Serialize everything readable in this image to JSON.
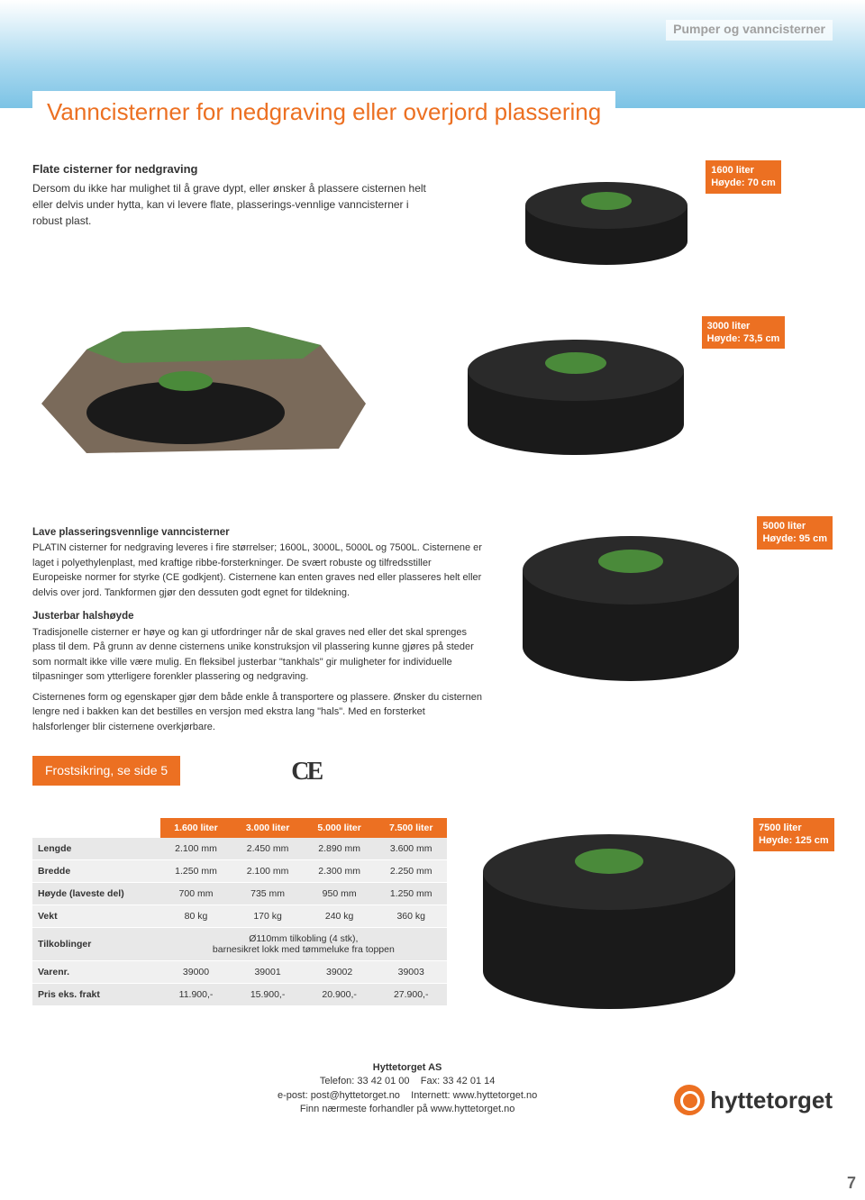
{
  "category": "Pumper og vanncisterner",
  "title": "Vanncisterner for nedgraving eller overjord plassering",
  "intro": {
    "heading": "Flate cisterner for nedgraving",
    "body": "Dersom du ikke har mulighet til å grave dypt, eller ønsker å plassere cisternen helt eller delvis under hytta, kan vi levere flate, plasserings-vennlige vanncisterner i robust plast."
  },
  "products": {
    "p1": {
      "line1": "1600 liter",
      "line2": "Høyde: 70 cm"
    },
    "p2": {
      "line1": "3000 liter",
      "line2": "Høyde: 73,5 cm"
    },
    "p3": {
      "line1": "5000 liter",
      "line2": "Høyde: 95 cm"
    },
    "p4": {
      "line1": "7500 liter",
      "line2": "Høyde: 125 cm"
    }
  },
  "body2": {
    "h1": "Lave plasseringsvennlige vanncisterner",
    "p1": "PLATIN cisterner for nedgraving leveres i fire størrelser;  1600L,  3000L, 5000L og 7500L. Cisternene er laget i polyethylenplast, med kraftige ribbe-forsterkninger. De svært robuste og tilfredsstiller Europeiske normer for styrke (CE godkjent). Cisternene kan enten graves ned eller plasseres helt eller delvis over jord. Tankformen gjør den dessuten godt egnet for tildekning.",
    "h2": "Justerbar halshøyde",
    "p2": "Tradisjonelle cisterner er høye og kan gi utfordringer når de skal graves ned eller det skal sprenges plass til dem. På grunn av denne cisternens unike konstruksjon vil plassering kunne gjøres på steder som normalt ikke ville være mulig. En fleksibel justerbar \"tankhals\" gir muligheter for individuelle tilpasninger som ytterligere forenkler plassering og nedgraving.",
    "p3": "Cisternenes form og egenskaper gjør dem både enkle å transportere og plassere. Ønsker du cisternen lengre ned i bakken kan det bestilles en versjon med ekstra lang \"hals\". Med en forsterket halsforlenger blir cisternene overkjørbare."
  },
  "frost_ref": "Frostsikring, se side 5",
  "ce_mark": "CE",
  "table": {
    "columns": [
      "",
      "1.600 liter",
      "3.000 liter",
      "5.000 liter",
      "7.500 liter"
    ],
    "rows": [
      [
        "Lengde",
        "2.100 mm",
        "2.450 mm",
        "2.890 mm",
        "3.600 mm"
      ],
      [
        "Bredde",
        "1.250 mm",
        "2.100 mm",
        "2.300 mm",
        "2.250 mm"
      ],
      [
        "Høyde (laveste del)",
        "700 mm",
        "735 mm",
        "950 mm",
        "1.250 mm"
      ],
      [
        "Vekt",
        "80 kg",
        "170 kg",
        "240 kg",
        "360 kg"
      ]
    ],
    "tilkoblinger_label": "Tilkoblinger",
    "tilkoblinger_value": "Ø110mm tilkobling (4 stk),\nbarnesikret lokk med tømmeluke fra toppen",
    "rows2": [
      [
        "Varenr.",
        "39000",
        "39001",
        "39002",
        "39003"
      ],
      [
        "Pris eks. frakt",
        "11.900,-",
        "15.900,-",
        "20.900,-",
        "27.900,-"
      ]
    ]
  },
  "footer": {
    "company": "Hyttetorget AS",
    "tel_label": "Telefon:",
    "tel": "33 42 01 00",
    "fax_label": "Fax:",
    "fax": "33 42 01 14",
    "email_label": "e-post:",
    "email": "post@hyttetorget.no",
    "web_label": "Internett:",
    "web": "www.hyttetorget.no",
    "dealer": "Finn nærmeste forhandler på www.hyttetorget.no",
    "logo_text": "hyttetorget"
  },
  "page_num": "7",
  "colors": {
    "accent": "#ec7022",
    "tank_body": "#1a1a1a",
    "tank_lid": "#4a8a3a"
  }
}
